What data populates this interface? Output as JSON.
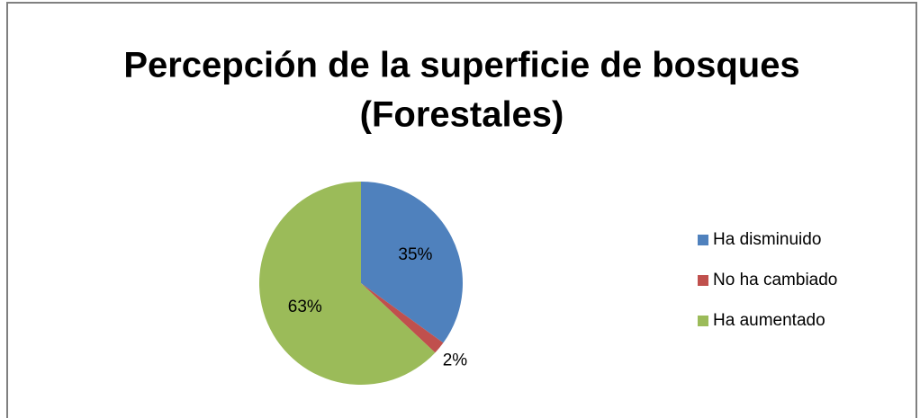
{
  "chart_data": {
    "type": "pie",
    "title": [
      "Percepción de la superficie de bosques",
      "(Forestales)"
    ],
    "categories": [
      "Ha disminuido",
      "No ha cambiado",
      "Ha aumentado"
    ],
    "values": [
      35,
      2,
      63
    ],
    "value_labels": [
      "35%",
      "2%",
      "63%"
    ],
    "colors": [
      "#4f81bd",
      "#c0504d",
      "#9bbb59"
    ],
    "legend": "right"
  }
}
